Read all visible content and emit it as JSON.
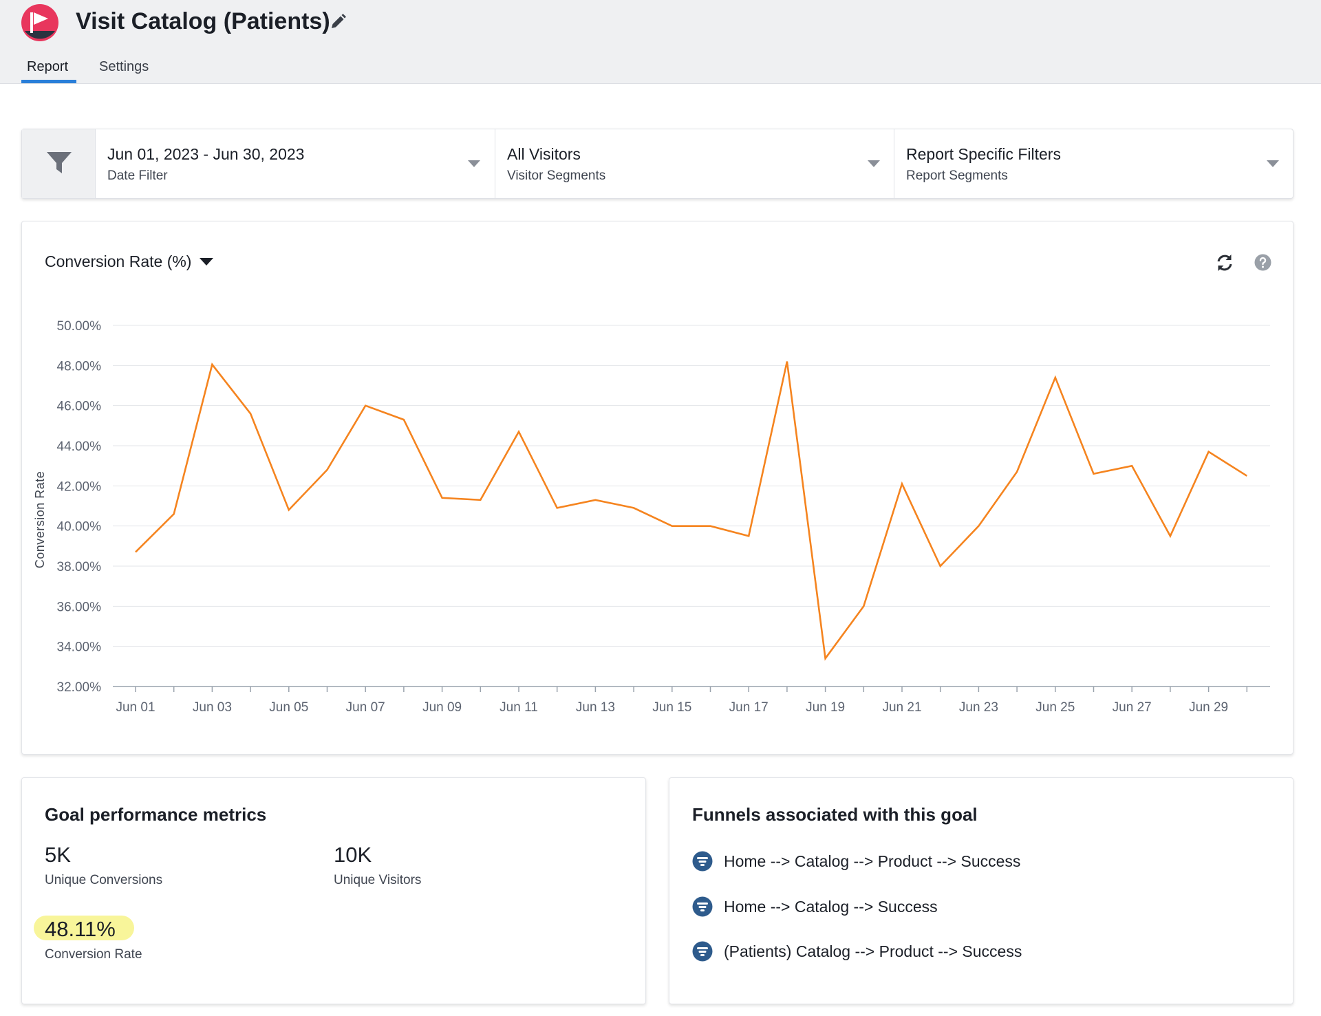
{
  "header": {
    "title": "Visit Catalog (Patients)",
    "logo_icon": "flag-logo-icon",
    "edit_icon": "pencil-icon",
    "tabs": [
      {
        "label": "Report",
        "active": true
      },
      {
        "label": "Settings",
        "active": false
      }
    ]
  },
  "filters": {
    "icon": "funnel-filter-icon",
    "sections": [
      {
        "value": "Jun 01, 2023 - Jun 30, 2023",
        "label": "Date Filter"
      },
      {
        "value": "All Visitors",
        "label": "Visitor Segments"
      },
      {
        "value": "Report Specific Filters",
        "label": "Report Segments"
      }
    ]
  },
  "chart_panel": {
    "metric_selector": "Conversion Rate (%)",
    "refresh_icon": "refresh-icon",
    "help_icon": "question-mark-icon"
  },
  "chart_data": {
    "type": "line",
    "ylabel": "Conversion Rate",
    "xlabel": "",
    "ylim": [
      32,
      50
    ],
    "yticks": [
      "50.00%",
      "48.00%",
      "46.00%",
      "44.00%",
      "42.00%",
      "40.00%",
      "38.00%",
      "36.00%",
      "34.00%",
      "32.00%"
    ],
    "xtick_labels": [
      "Jun 01",
      "Jun 03",
      "Jun 05",
      "Jun 07",
      "Jun 09",
      "Jun 11",
      "Jun 13",
      "Jun 15",
      "Jun 17",
      "Jun 19",
      "Jun 21",
      "Jun 23",
      "Jun 25",
      "Jun 27",
      "Jun 29"
    ],
    "x": [
      "Jun 01",
      "Jun 02",
      "Jun 03",
      "Jun 04",
      "Jun 05",
      "Jun 06",
      "Jun 07",
      "Jun 08",
      "Jun 09",
      "Jun 10",
      "Jun 11",
      "Jun 12",
      "Jun 13",
      "Jun 14",
      "Jun 15",
      "Jun 16",
      "Jun 17",
      "Jun 18",
      "Jun 19",
      "Jun 20",
      "Jun 21",
      "Jun 22",
      "Jun 23",
      "Jun 24",
      "Jun 25",
      "Jun 26",
      "Jun 27",
      "Jun 28",
      "Jun 29",
      "Jun 30"
    ],
    "series": [
      {
        "color": "#f5841f",
        "values": [
          38.7,
          40.6,
          48.05,
          45.6,
          40.8,
          42.8,
          46.0,
          45.3,
          41.4,
          41.3,
          44.7,
          40.9,
          41.3,
          40.9,
          40.0,
          40.0,
          39.5,
          48.2,
          33.4,
          36.0,
          42.1,
          38.0,
          40.0,
          42.7,
          47.4,
          42.6,
          43.0,
          39.5,
          43.7,
          42.5
        ]
      }
    ],
    "grid": true,
    "legend": "none"
  },
  "metrics": {
    "title": "Goal performance metrics",
    "unique_conversions_value": "5K",
    "unique_conversions_label": "Unique Conversions",
    "unique_visitors_value": "10K",
    "unique_visitors_label": "Unique Visitors",
    "conversion_rate_value": "48.11%",
    "conversion_rate_label": "Conversion Rate",
    "highlight_color": "#f8f59a"
  },
  "funnels": {
    "title": "Funnels associated with this goal",
    "icon": "funnel-icon",
    "items": [
      {
        "label": "Home --> Catalog --> Product --> Success"
      },
      {
        "label": "Home --> Catalog --> Success"
      },
      {
        "label": "(Patients) Catalog --> Product --> Success"
      }
    ]
  },
  "colors": {
    "accent": "#2a7fd9",
    "brand": "#e8365d",
    "line": "#f5841f"
  }
}
